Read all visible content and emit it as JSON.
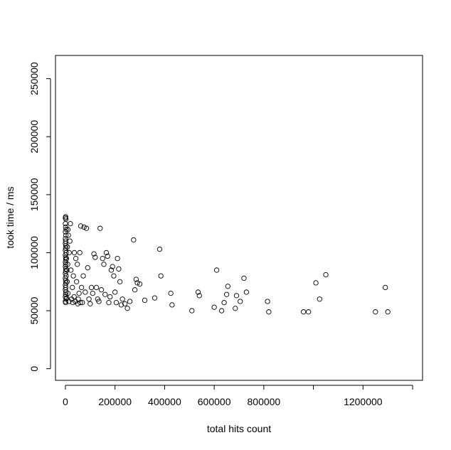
{
  "chart_data": {
    "type": "scatter",
    "title": "",
    "xlabel": "total hits count",
    "ylabel": "took time / ms",
    "xlim": [
      -40000,
      1440000
    ],
    "ylim": [
      -10000,
      270000
    ],
    "x_ticks": [
      0,
      200000,
      400000,
      600000,
      800000,
      1200000
    ],
    "x_tick_labels": [
      "0",
      "200000",
      "400000",
      "600000",
      "800000",
      "1200000"
    ],
    "x_minor_ticks": [
      1000000,
      1400000
    ],
    "y_ticks": [
      0,
      50000,
      100000,
      150000,
      200000,
      250000
    ],
    "y_tick_labels": [
      "0",
      "50000",
      "100000",
      "150000",
      "200000",
      "250000"
    ],
    "grid": false,
    "marker": "open-circle",
    "points": [
      [
        0,
        130000
      ],
      [
        1000,
        131000
      ],
      [
        2000,
        129000
      ],
      [
        0,
        125000
      ],
      [
        1000,
        122000
      ],
      [
        3000,
        120000
      ],
      [
        0,
        118000
      ],
      [
        2000,
        115000
      ],
      [
        0,
        112000
      ],
      [
        1000,
        110000
      ],
      [
        0,
        108000
      ],
      [
        2000,
        106000
      ],
      [
        1000,
        104000
      ],
      [
        0,
        102000
      ],
      [
        3000,
        100000
      ],
      [
        0,
        98000
      ],
      [
        1000,
        96000
      ],
      [
        2000,
        94000
      ],
      [
        0,
        92000
      ],
      [
        1000,
        90000
      ],
      [
        0,
        88000
      ],
      [
        2000,
        86000
      ],
      [
        1000,
        84000
      ],
      [
        0,
        82000
      ],
      [
        3000,
        80000
      ],
      [
        0,
        78000
      ],
      [
        1000,
        76000
      ],
      [
        2000,
        74000
      ],
      [
        0,
        72000
      ],
      [
        1000,
        70000
      ],
      [
        0,
        68000
      ],
      [
        2000,
        66000
      ],
      [
        1000,
        64000
      ],
      [
        0,
        62000
      ],
      [
        3000,
        60000
      ],
      [
        0,
        58000
      ],
      [
        1000,
        57000
      ],
      [
        5000,
        61000
      ],
      [
        6000,
        85000
      ],
      [
        4000,
        95000
      ],
      [
        8000,
        105000
      ],
      [
        7000,
        75000
      ],
      [
        10000,
        120000
      ],
      [
        12000,
        115000
      ],
      [
        15000,
        100000
      ],
      [
        18000,
        110000
      ],
      [
        20000,
        125000
      ],
      [
        10000,
        65000
      ],
      [
        14000,
        58000
      ],
      [
        9000,
        90000
      ],
      [
        25000,
        60000
      ],
      [
        30000,
        57000
      ],
      [
        35000,
        62000
      ],
      [
        40000,
        58000
      ],
      [
        28000,
        70000
      ],
      [
        32000,
        80000
      ],
      [
        36000,
        100000
      ],
      [
        42000,
        95000
      ],
      [
        45000,
        75000
      ],
      [
        22000,
        85000
      ],
      [
        50000,
        56000
      ],
      [
        55000,
        65000
      ],
      [
        60000,
        57000
      ],
      [
        65000,
        70000
      ],
      [
        48000,
        90000
      ],
      [
        52000,
        60000
      ],
      [
        58000,
        100000
      ],
      [
        62000,
        123000
      ],
      [
        68000,
        57000
      ],
      [
        72000,
        80000
      ],
      [
        75000,
        122000
      ],
      [
        80000,
        66000
      ],
      [
        85000,
        121000
      ],
      [
        90000,
        87000
      ],
      [
        95000,
        60000
      ],
      [
        100000,
        56000
      ],
      [
        105000,
        70000
      ],
      [
        110000,
        65000
      ],
      [
        115000,
        99000
      ],
      [
        120000,
        96000
      ],
      [
        125000,
        70000
      ],
      [
        130000,
        60000
      ],
      [
        135000,
        58000
      ],
      [
        140000,
        121000
      ],
      [
        145000,
        68000
      ],
      [
        150000,
        95000
      ],
      [
        155000,
        90000
      ],
      [
        160000,
        64000
      ],
      [
        165000,
        100000
      ],
      [
        170000,
        97000
      ],
      [
        175000,
        57000
      ],
      [
        180000,
        62000
      ],
      [
        185000,
        85000
      ],
      [
        190000,
        88000
      ],
      [
        195000,
        80000
      ],
      [
        200000,
        66000
      ],
      [
        205000,
        57000
      ],
      [
        210000,
        95000
      ],
      [
        215000,
        86000
      ],
      [
        220000,
        75000
      ],
      [
        225000,
        55000
      ],
      [
        230000,
        60000
      ],
      [
        240000,
        56000
      ],
      [
        250000,
        52000
      ],
      [
        260000,
        58000
      ],
      [
        275000,
        111000
      ],
      [
        280000,
        68000
      ],
      [
        285000,
        77000
      ],
      [
        290000,
        74000
      ],
      [
        300000,
        73000
      ],
      [
        320000,
        59000
      ],
      [
        360000,
        61000
      ],
      [
        380000,
        103000
      ],
      [
        385000,
        80000
      ],
      [
        425000,
        65000
      ],
      [
        430000,
        55000
      ],
      [
        510000,
        50000
      ],
      [
        535000,
        66000
      ],
      [
        540000,
        63000
      ],
      [
        600000,
        53000
      ],
      [
        610000,
        85000
      ],
      [
        630000,
        50000
      ],
      [
        640000,
        57000
      ],
      [
        650000,
        64000
      ],
      [
        655000,
        71000
      ],
      [
        685000,
        52000
      ],
      [
        690000,
        63000
      ],
      [
        705000,
        58000
      ],
      [
        720000,
        78000
      ],
      [
        730000,
        66000
      ],
      [
        815000,
        58000
      ],
      [
        820000,
        49000
      ],
      [
        960000,
        49000
      ],
      [
        980000,
        49000
      ],
      [
        1010000,
        74000
      ],
      [
        1025000,
        60000
      ],
      [
        1050000,
        81000
      ],
      [
        1250000,
        49000
      ],
      [
        1290000,
        70000
      ],
      [
        1300000,
        49000
      ]
    ]
  }
}
